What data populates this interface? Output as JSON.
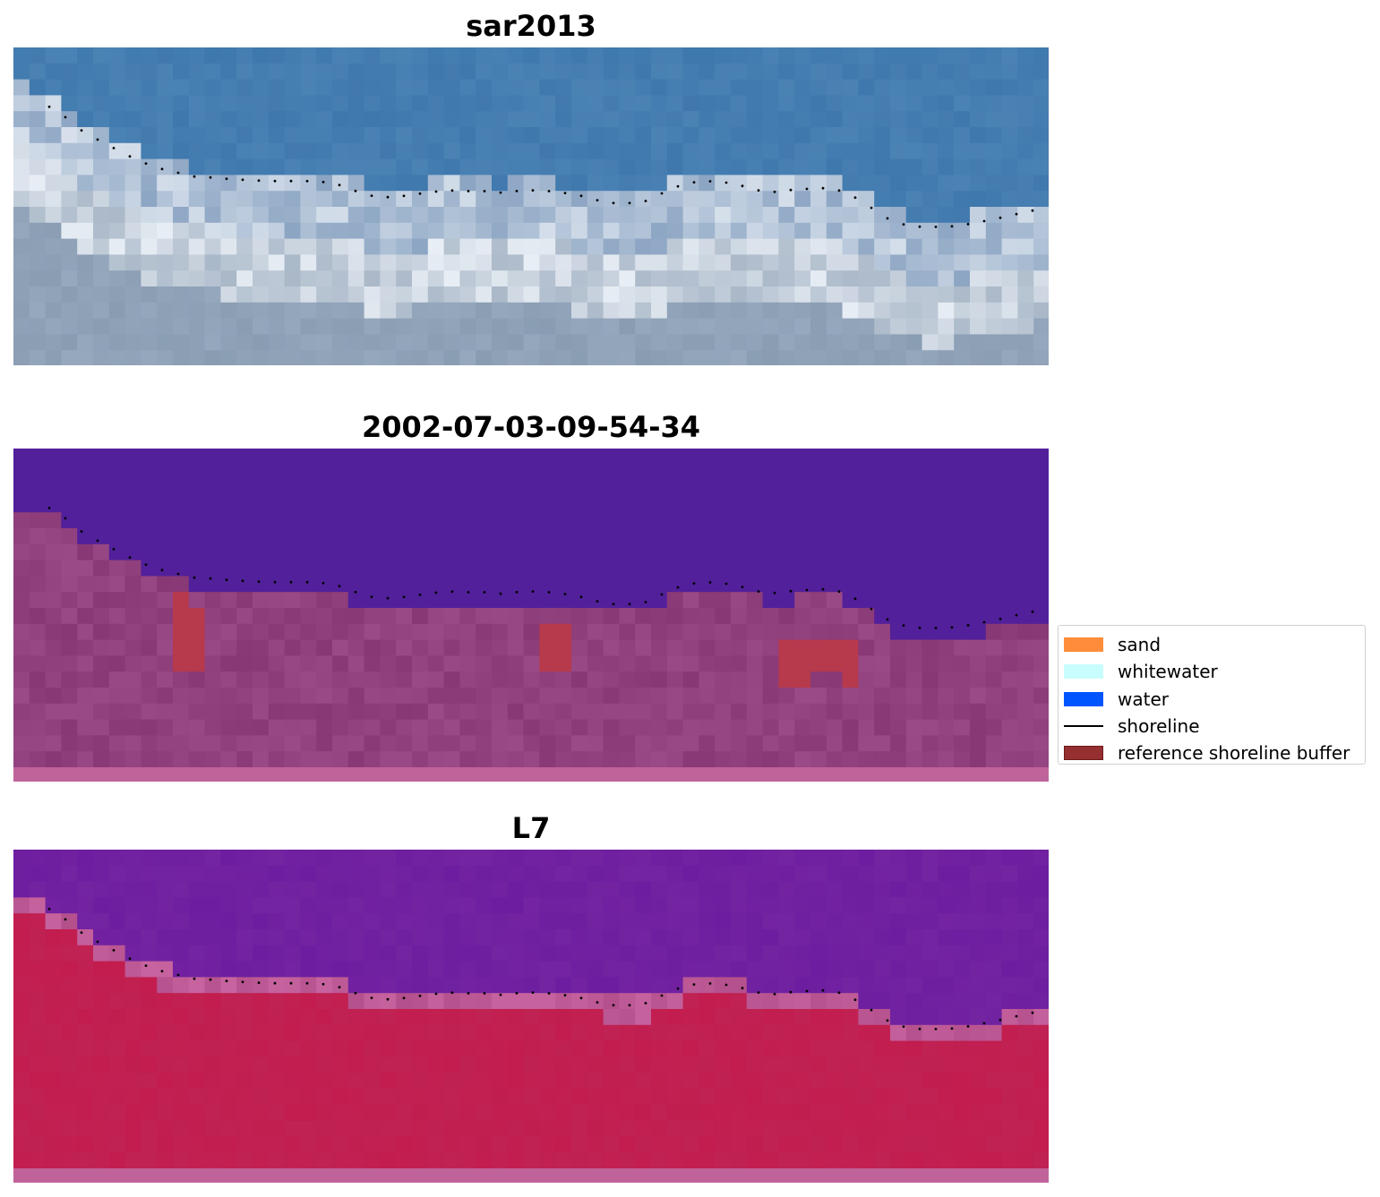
{
  "panels": [
    {
      "title": "sar2013",
      "style": "rgb"
    },
    {
      "title": "2002-07-03-09-54-34",
      "style": "classified"
    },
    {
      "title": "L7",
      "style": "index"
    }
  ],
  "colors": {
    "rgb_water": "#3f78ad",
    "rgb_surf": "#e8eef5",
    "classified_water": "#52209a",
    "classified_land": "#9a4a86",
    "classified_buffer": "#b63a4c",
    "index_water": "#6d1ea0",
    "index_land": "#c21d4e"
  },
  "legend": {
    "items": [
      {
        "label": "sand",
        "type": "patch",
        "color": "#ff8c3a"
      },
      {
        "label": "whitewater",
        "type": "patch",
        "color": "#c8fdfd"
      },
      {
        "label": "water",
        "type": "patch",
        "color": "#0055ff"
      },
      {
        "label": "shoreline",
        "type": "line",
        "color": "#000000"
      },
      {
        "label": "reference shoreline buffer",
        "type": "patch",
        "color": "#952f30",
        "edge": "#6e1a1a"
      }
    ]
  }
}
